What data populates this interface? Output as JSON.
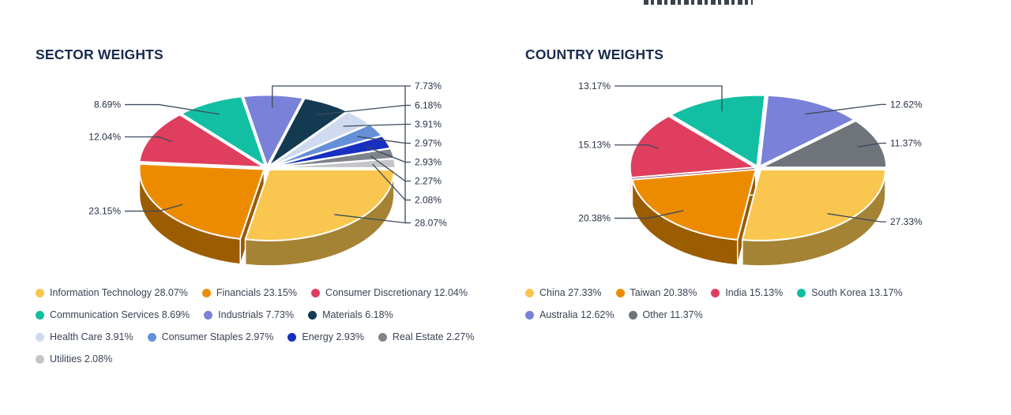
{
  "page": {
    "background": "#ffffff",
    "top_fragment_note": "partially clipped bold text at top edge (illegible)"
  },
  "colors": {
    "title_text": "#182b4d",
    "callout_label_text": "#273244",
    "leader_line": "#3e4a5c",
    "legend_text": "#3a4354",
    "slice_separator": "#ffffff"
  },
  "chart_data": [
    {
      "type": "pie",
      "style": "3d-exploded",
      "title": "SECTOR WEIGHTS",
      "direction": "clockwise",
      "start_angle_deg": 90,
      "labels": "percent callouts with leader lines",
      "legend_position": "bottom",
      "slices": [
        {
          "label": "Information Technology",
          "value": 28.07,
          "color": "#f9c750"
        },
        {
          "label": "Financials",
          "value": 23.15,
          "color": "#ed8b00"
        },
        {
          "label": "Consumer Discretionary",
          "value": 12.04,
          "color": "#df3e5e"
        },
        {
          "label": "Communication Services",
          "value": 8.69,
          "color": "#12bfa2"
        },
        {
          "label": "Industrials",
          "value": 7.73,
          "color": "#7a81d8"
        },
        {
          "label": "Materials",
          "value": 6.18,
          "color": "#143a52"
        },
        {
          "label": "Health Care",
          "value": 3.91,
          "color": "#cfdaf0"
        },
        {
          "label": "Consumer Staples",
          "value": 2.97,
          "color": "#6590d8"
        },
        {
          "label": "Energy",
          "value": 2.93,
          "color": "#1830c0"
        },
        {
          "label": "Real Estate",
          "value": 2.27,
          "color": "#7f848b"
        },
        {
          "label": "Utilities",
          "value": 2.08,
          "color": "#c4c5c9"
        }
      ]
    },
    {
      "type": "pie",
      "style": "3d-exploded",
      "title": "COUNTRY WEIGHTS",
      "direction": "clockwise",
      "start_angle_deg": 90,
      "labels": "percent callouts with leader lines",
      "legend_position": "bottom",
      "slices": [
        {
          "label": "China",
          "value": 27.33,
          "color": "#f9c750"
        },
        {
          "label": "Taiwan",
          "value": 20.38,
          "color": "#ed8b00"
        },
        {
          "label": "India",
          "value": 15.13,
          "color": "#df3e5e"
        },
        {
          "label": "South Korea",
          "value": 13.17,
          "color": "#12bfa2"
        },
        {
          "label": "Australia",
          "value": 12.62,
          "color": "#7a81d8"
        },
        {
          "label": "Other",
          "value": 11.37,
          "color": "#6f747b"
        }
      ]
    }
  ]
}
